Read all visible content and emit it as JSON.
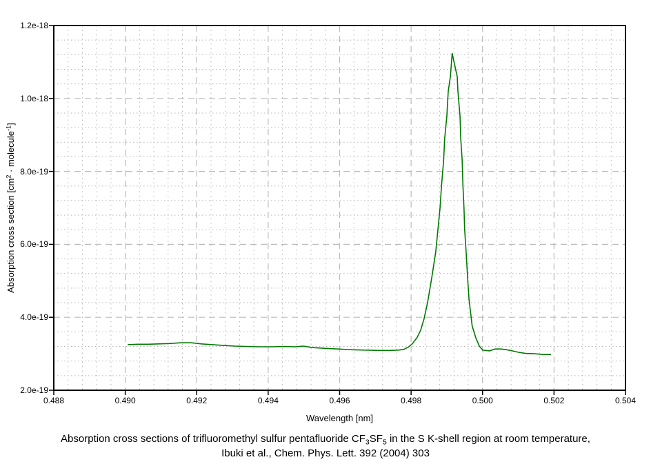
{
  "chart": {
    "x_axis_title": "Wavelength [nm]",
    "y_axis_title": {
      "a": "Absorption cross section [cm",
      "sup1": "2",
      "b": " · molecule",
      "sup2": "-1",
      "c": "]"
    },
    "x_tick_labels": [
      "0.488",
      "0.490",
      "0.492",
      "0.494",
      "0.496",
      "0.498",
      "0.500",
      "0.502",
      "0.504"
    ],
    "y_tick_labels": [
      "2.0e-19",
      "4.0e-19",
      "6.0e-19",
      "8.0e-19",
      "1.0e-18",
      "1.2e-18"
    ],
    "colors": {
      "line": "#007800",
      "major_grid": "#bbbbbb",
      "minor_grid": "#b5b5b5",
      "axis": "#000000",
      "background": "#ffffff"
    }
  },
  "caption": {
    "l1a": "Absorption cross sections of trifluoromethyl sulfur pentafluoride CF",
    "l1sub1": "3",
    "l1b": "SF",
    "l1sub2": "5",
    "l1c": " in the S K-shell region at room temperature,",
    "line2": "Ibuki et al., Chem. Phys. Lett. 392 (2004) 303"
  },
  "chart_data": {
    "type": "line",
    "title": "",
    "xlabel": "Wavelength [nm]",
    "ylabel": "Absorption cross section [cm2 · molecule-1]",
    "xlim": [
      0.488,
      0.504
    ],
    "ylim": [
      2e-19,
      1.2e-18
    ],
    "x_major_ticks": [
      0.488,
      0.49,
      0.492,
      0.494,
      0.496,
      0.498,
      0.5,
      0.502,
      0.504
    ],
    "y_major_ticks": [
      2e-19,
      4e-19,
      6e-19,
      8e-19,
      1e-18,
      1.2e-18
    ],
    "x_minor_step": 0.0004,
    "y_minor_step": 4e-20,
    "grid": {
      "major": "dashed",
      "minor": "dotted"
    },
    "legend": "none",
    "peak": {
      "x": 0.49915,
      "y": 1.124e-18
    },
    "series": [
      {
        "name": "CF3SF5 absorption cross section",
        "x": [
          0.49007,
          0.49035,
          0.49064,
          0.49093,
          0.49122,
          0.49155,
          0.49186,
          0.49213,
          0.49244,
          0.49273,
          0.49306,
          0.4934,
          0.49375,
          0.4941,
          0.49445,
          0.49475,
          0.49499,
          0.49522,
          0.49557,
          0.49595,
          0.49634,
          0.49672,
          0.49711,
          0.4974,
          0.49765,
          0.49779,
          0.49792,
          0.49804,
          0.49817,
          0.49827,
          0.49836,
          0.49846,
          0.49858,
          0.49869,
          0.49875,
          0.49881,
          0.49885,
          0.49891,
          0.49894,
          0.499,
          0.49904,
          0.4991,
          0.49915,
          0.49919,
          0.49929,
          0.49931,
          0.49937,
          0.49939,
          0.49943,
          0.49945,
          0.49948,
          0.4995,
          0.49954,
          0.49958,
          0.49962,
          0.49968,
          0.49971,
          0.49981,
          0.49991,
          0.5,
          0.50019,
          0.50035,
          0.50052,
          0.50068,
          0.50083,
          0.50101,
          0.5012,
          0.50145,
          0.50171,
          0.50192
        ],
        "y": [
          3.25e-19,
          3.26e-19,
          3.26e-19,
          3.27e-19,
          3.28e-19,
          3.3e-19,
          3.3e-19,
          3.27e-19,
          3.25e-19,
          3.23e-19,
          3.21e-19,
          3.2e-19,
          3.19e-19,
          3.19e-19,
          3.2e-19,
          3.19e-19,
          3.21e-19,
          3.17e-19,
          3.15e-19,
          3.13e-19,
          3.11e-19,
          3.1e-19,
          3.09e-19,
          3.09e-19,
          3.1e-19,
          3.12e-19,
          3.18e-19,
          3.28e-19,
          3.45e-19,
          3.65e-19,
          3.95e-19,
          4.4e-19,
          5.1e-19,
          5.8e-19,
          6.4e-19,
          7e-19,
          7.6e-19,
          8.3e-19,
          8.9e-19,
          9.5e-19,
          1.02e-18,
          1.06e-18,
          1.124e-18,
          1.105e-18,
          1.06e-18,
          1.02e-18,
          9.5e-19,
          8.9e-19,
          8.3e-19,
          7.6e-19,
          7e-19,
          6.4e-19,
          5.8e-19,
          5.1e-19,
          4.5e-19,
          4e-19,
          3.76e-19,
          3.44e-19,
          3.21e-19,
          3.1e-19,
          3.08e-19,
          3.13e-19,
          3.13e-19,
          3.11e-19,
          3.08e-19,
          3.04e-19,
          3.01e-19,
          3e-19,
          2.98e-19,
          2.98e-19
        ]
      }
    ]
  }
}
